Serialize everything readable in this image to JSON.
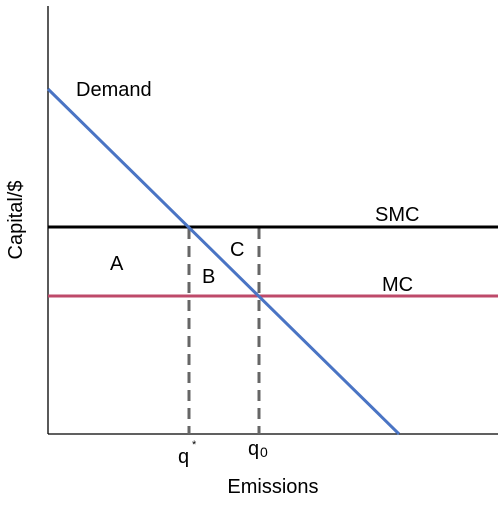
{
  "diagram": {
    "y_axis_label": "Capital/$",
    "x_axis_label": "Emissions",
    "curves": {
      "demand": {
        "label": "Demand",
        "color": "#4a74c4"
      },
      "smc": {
        "label": "SMC",
        "color": "#000000"
      },
      "mc": {
        "label": "MC",
        "color": "#be4a6a"
      }
    },
    "regions": {
      "a": "A",
      "b": "B",
      "c": "C"
    },
    "ticks": {
      "q_star": {
        "base": "q",
        "sup": "*"
      },
      "q_zero": {
        "base": "q",
        "sub": "0"
      }
    },
    "guide_color": "#666666",
    "axis_color": "#000000"
  }
}
